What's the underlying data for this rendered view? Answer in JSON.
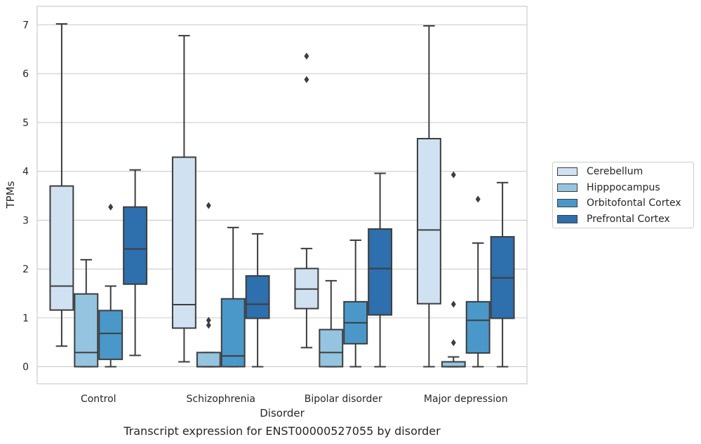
{
  "chart_data": {
    "type": "boxplot",
    "xlabel": "Disorder",
    "ylabel": "TPMs",
    "ylim": [
      -0.35,
      7.38
    ],
    "yticks": [
      0,
      1,
      2,
      3,
      4,
      5,
      6,
      7
    ],
    "grid": "horizontal",
    "legend_position": "right",
    "categories": [
      "Control",
      "Schizophrenia",
      "Bipolar disorder",
      "Major depression"
    ],
    "series": [
      {
        "name": "Cerebellum",
        "color": "#d0e1f2",
        "boxes": [
          {
            "whislo": 0.42,
            "q1": 1.16,
            "med": 1.65,
            "q3": 3.7,
            "whishi": 7.02,
            "fliers": []
          },
          {
            "whislo": 0.1,
            "q1": 0.79,
            "med": 1.27,
            "q3": 4.29,
            "whishi": 6.78,
            "fliers": []
          },
          {
            "whislo": 0.39,
            "q1": 1.19,
            "med": 1.59,
            "q3": 2.01,
            "whishi": 2.42,
            "fliers": [
              5.88,
              6.36
            ]
          },
          {
            "whislo": 0.0,
            "q1": 1.29,
            "med": 2.8,
            "q3": 4.67,
            "whishi": 6.98,
            "fliers": []
          }
        ]
      },
      {
        "name": "Hipppocampus",
        "color": "#94c4df",
        "boxes": [
          {
            "whislo": 0.0,
            "q1": 0.0,
            "med": 0.29,
            "q3": 1.49,
            "whishi": 2.19,
            "fliers": []
          },
          {
            "whislo": 0.0,
            "q1": 0.0,
            "med": 0.0,
            "q3": 0.29,
            "whishi": 0.29,
            "fliers": [
              0.85,
              0.95,
              3.3
            ]
          },
          {
            "whislo": 0.0,
            "q1": 0.0,
            "med": 0.29,
            "q3": 0.76,
            "whishi": 1.76,
            "fliers": []
          },
          {
            "whislo": 0.0,
            "q1": 0.0,
            "med": 0.0,
            "q3": 0.1,
            "whishi": 0.2,
            "fliers": [
              0.49,
              1.28,
              3.93
            ]
          }
        ]
      },
      {
        "name": "Orbitofontal Cortex",
        "color": "#4a98c9",
        "boxes": [
          {
            "whislo": 0.0,
            "q1": 0.15,
            "med": 0.68,
            "q3": 1.15,
            "whishi": 1.65,
            "fliers": [
              3.27
            ]
          },
          {
            "whislo": 0.0,
            "q1": 0.0,
            "med": 0.22,
            "q3": 1.39,
            "whishi": 2.85,
            "fliers": []
          },
          {
            "whislo": 0.0,
            "q1": 0.47,
            "med": 0.9,
            "q3": 1.33,
            "whishi": 2.59,
            "fliers": []
          },
          {
            "whislo": 0.0,
            "q1": 0.28,
            "med": 0.95,
            "q3": 1.33,
            "whishi": 2.53,
            "fliers": [
              3.43
            ]
          }
        ]
      },
      {
        "name": "Prefrontal Cortex",
        "color": "#2e6fad",
        "boxes": [
          {
            "whislo": 0.23,
            "q1": 1.69,
            "med": 2.41,
            "q3": 3.27,
            "whishi": 4.03,
            "fliers": []
          },
          {
            "whislo": 0.0,
            "q1": 0.99,
            "med": 1.28,
            "q3": 1.86,
            "whishi": 2.72,
            "fliers": []
          },
          {
            "whislo": 0.0,
            "q1": 1.06,
            "med": 2.01,
            "q3": 2.82,
            "whishi": 3.96,
            "fliers": []
          },
          {
            "whislo": 0.0,
            "q1": 0.99,
            "med": 1.82,
            "q3": 2.66,
            "whishi": 3.77,
            "fliers": []
          }
        ]
      }
    ],
    "caption": "Transcript expression for ENST00000527055 by disorder"
  }
}
